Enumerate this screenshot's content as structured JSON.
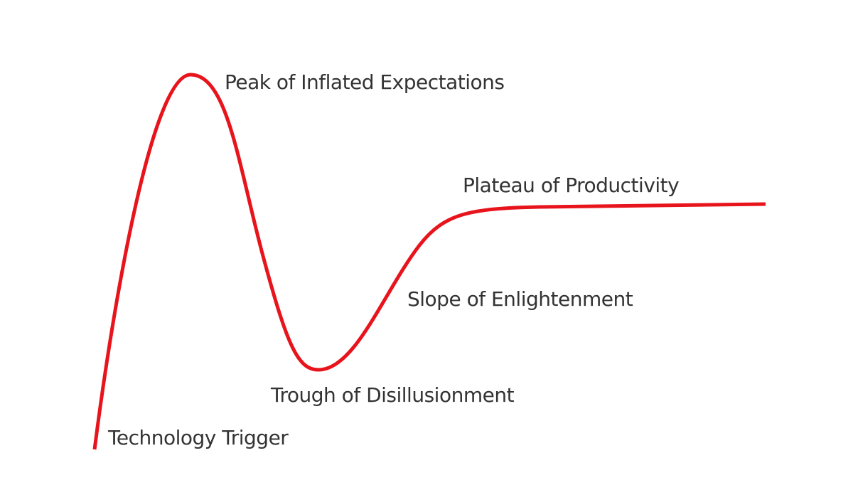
{
  "phases": [
    {
      "label": "Technology Trigger"
    },
    {
      "label": "Peak of Inflated Expectations"
    },
    {
      "label": "Trough of Disillusionment"
    },
    {
      "label": "Slope of Enlightenment"
    },
    {
      "label": "Plateau of Productivity"
    }
  ]
}
